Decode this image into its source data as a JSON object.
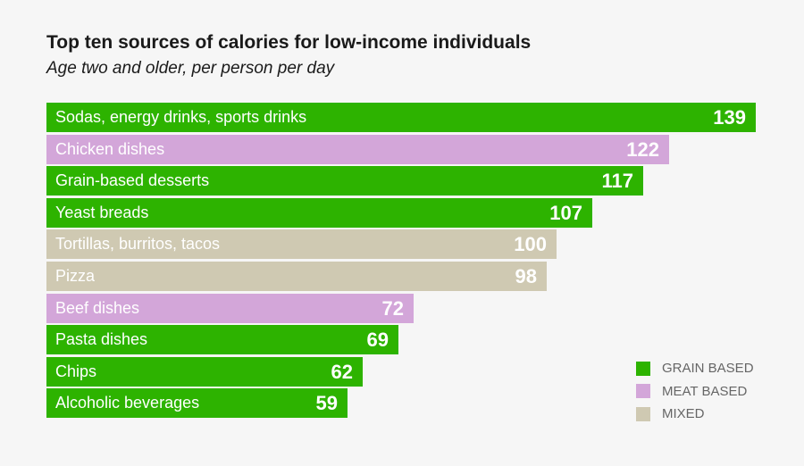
{
  "colors": {
    "grain": "#2db300",
    "meat": "#d3a6d9",
    "mixed": "#cfc9b2"
  },
  "chart_data": {
    "type": "bar",
    "orientation": "horizontal",
    "title": "Top ten sources of calories for low-income individuals",
    "subtitle": "Age two and older, per person per day",
    "xlabel": "",
    "ylabel": "",
    "xlim": [
      0,
      139
    ],
    "unit": "calories per person per day",
    "grid": false,
    "legend_position": "bottom-right",
    "categories": [
      "Sodas, energy drinks, sports drinks",
      "Chicken dishes",
      "Grain-based desserts",
      "Yeast breads",
      "Tortillas, burritos, tacos",
      "Pizza",
      "Beef dishes",
      "Pasta dishes",
      "Chips",
      "Alcoholic beverages"
    ],
    "values": [
      139,
      122,
      117,
      107,
      100,
      98,
      72,
      69,
      62,
      59
    ],
    "groups": [
      "grain",
      "meat",
      "grain",
      "grain",
      "mixed",
      "mixed",
      "meat",
      "grain",
      "grain",
      "grain"
    ],
    "legend": [
      {
        "key": "grain",
        "label": "GRAIN BASED"
      },
      {
        "key": "meat",
        "label": "MEAT BASED"
      },
      {
        "key": "mixed",
        "label": "MIXED"
      }
    ]
  }
}
